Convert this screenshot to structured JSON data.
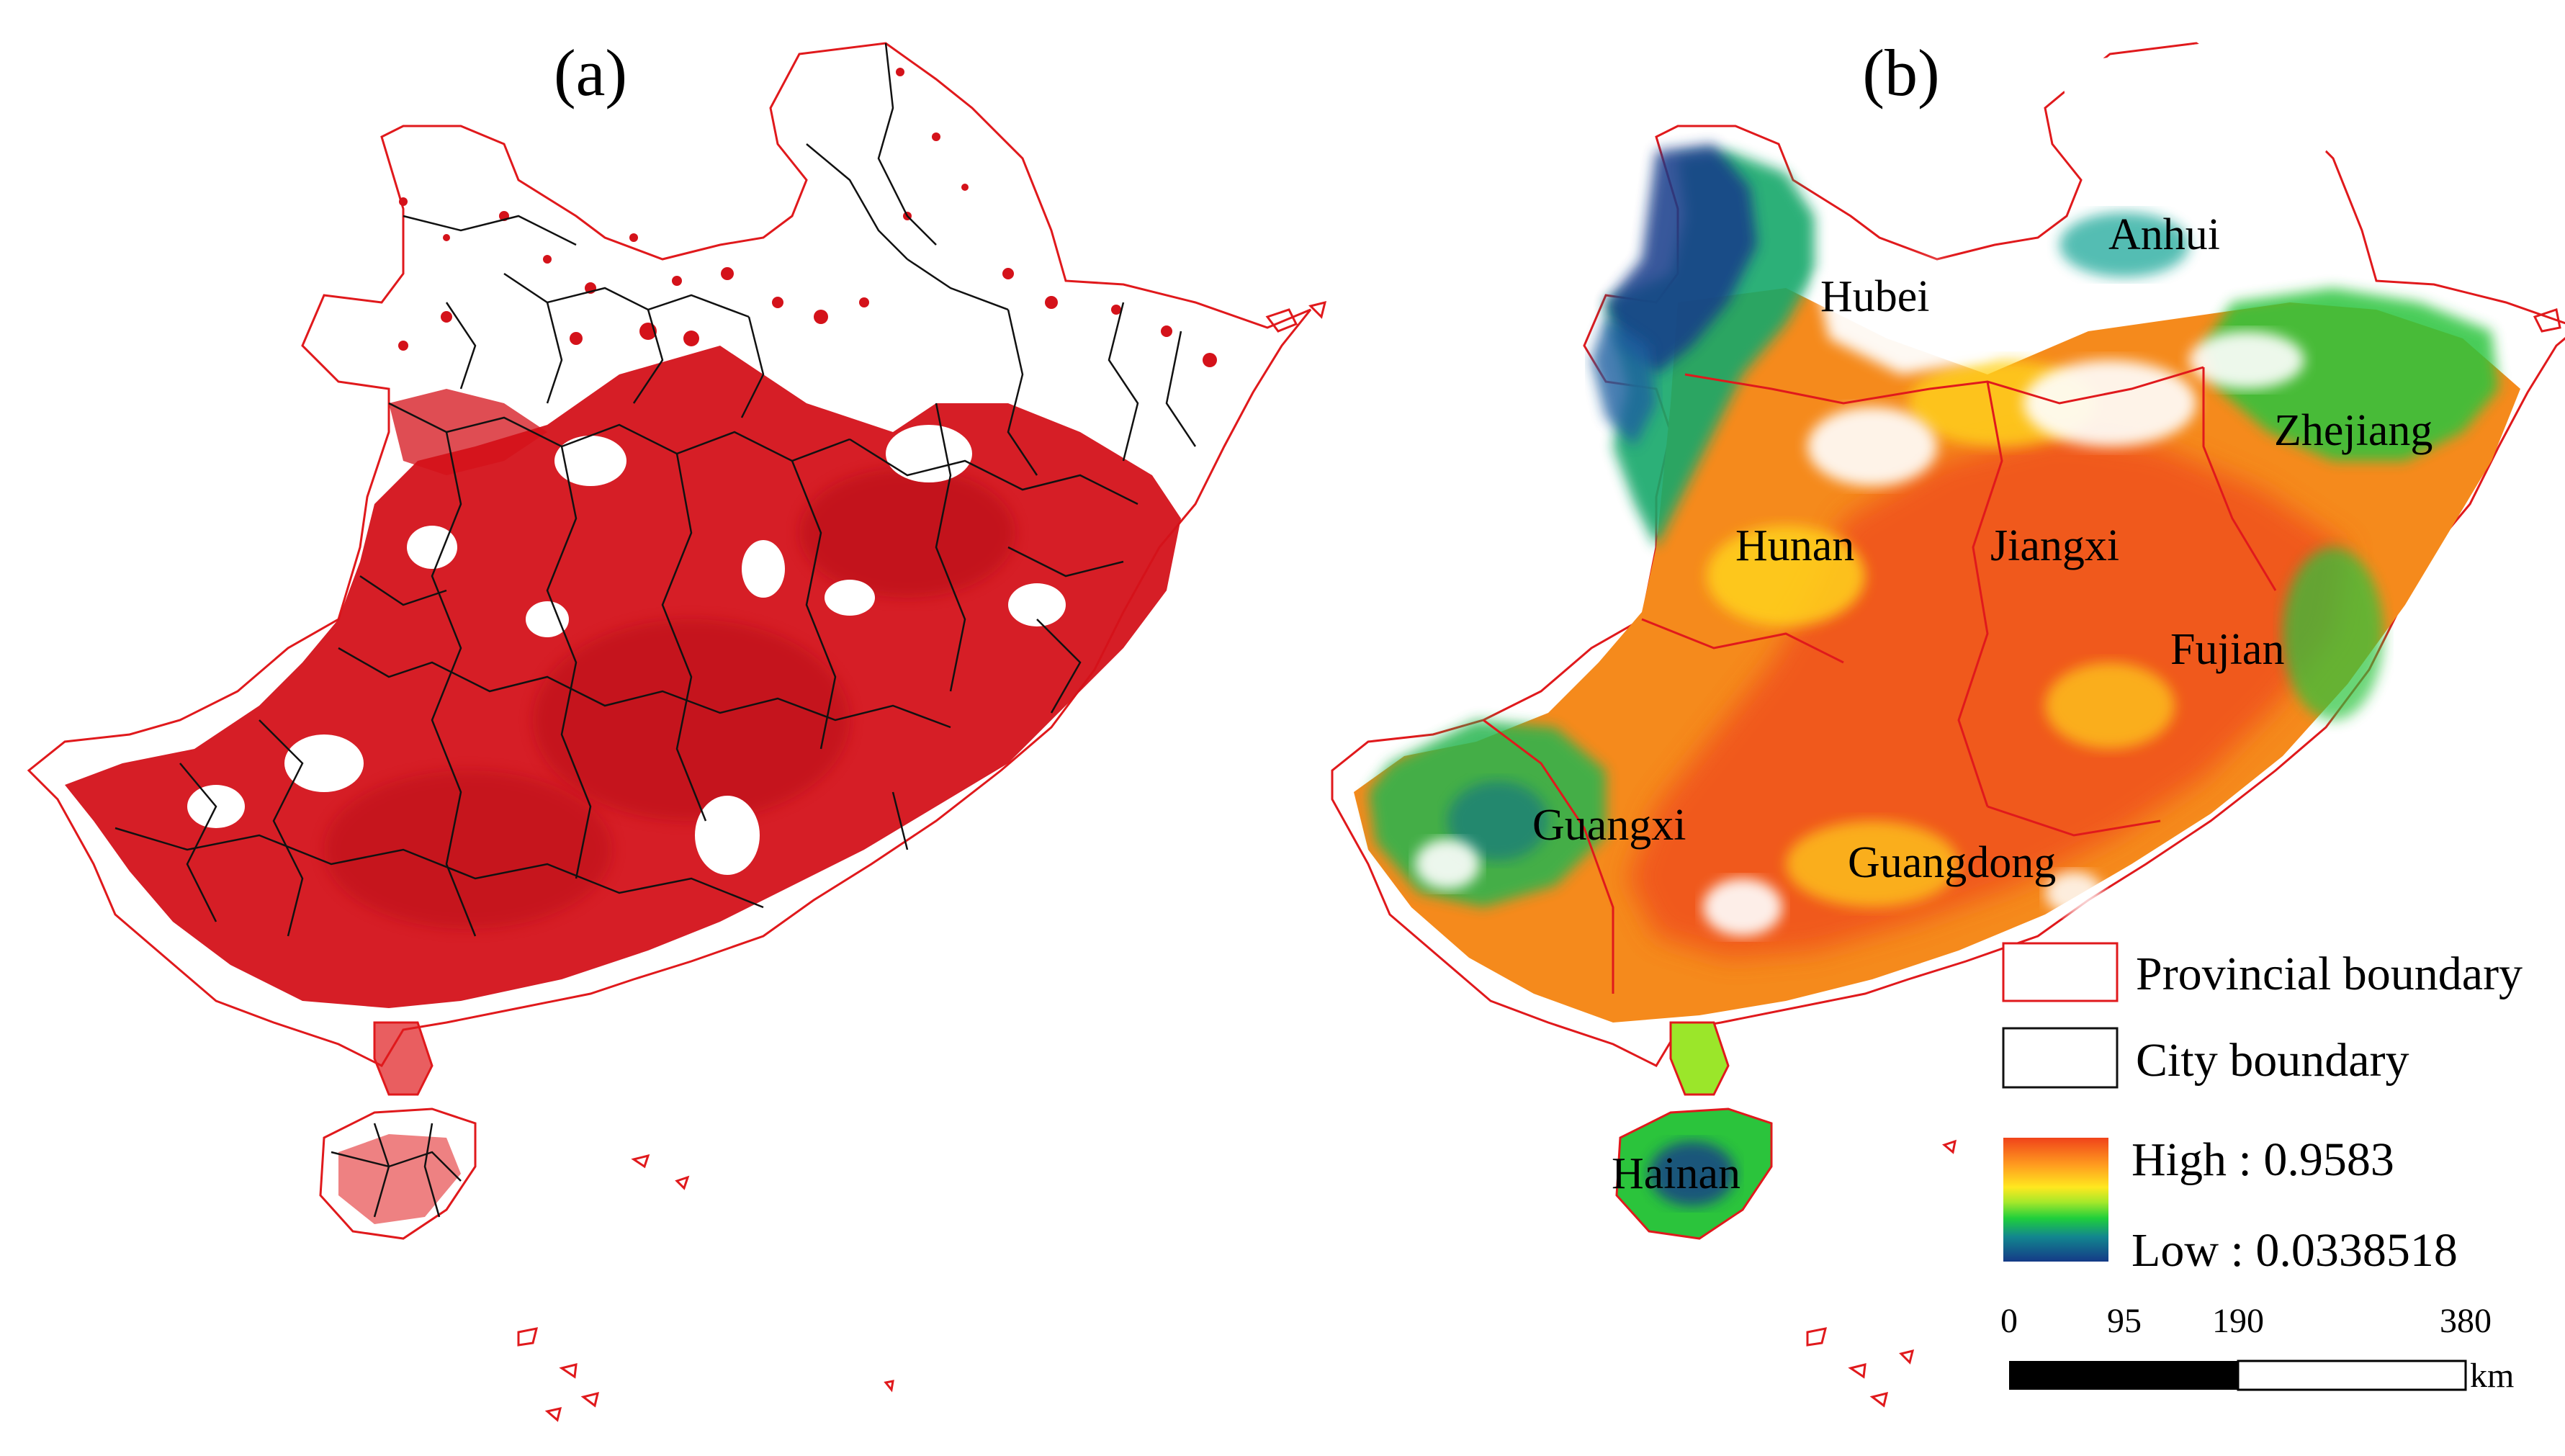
{
  "panels": {
    "a": {
      "label": "(a)"
    },
    "b": {
      "label": "(b)"
    }
  },
  "provinces": [
    {
      "id": "hubei",
      "name": "Hubei"
    },
    {
      "id": "anhui",
      "name": "Anhui"
    },
    {
      "id": "zhejiang",
      "name": "Zhejiang"
    },
    {
      "id": "hunan",
      "name": "Hunan"
    },
    {
      "id": "jiangxi",
      "name": "Jiangxi"
    },
    {
      "id": "fujian",
      "name": "Fujian"
    },
    {
      "id": "guangxi",
      "name": "Guangxi"
    },
    {
      "id": "guangdong",
      "name": "Guangdong"
    },
    {
      "id": "hainan",
      "name": "Hainan"
    }
  ],
  "legend": {
    "provincial_boundary": "Provincial boundary",
    "city_boundary": "City boundary",
    "high": "High : 0.9583",
    "low": "Low : 0.0338518",
    "high_value": 0.9583,
    "low_value": 0.0338518
  },
  "scale_bar": {
    "ticks": [
      "0",
      "95",
      "190",
      "380"
    ],
    "unit": "km"
  },
  "colors": {
    "provincial_boundary": "#e0191c",
    "city_boundary": "#111111",
    "points": "#d4121a",
    "ramp": [
      "#ff5a1f",
      "#ff9a1e",
      "#ffd21e",
      "#ffff33",
      "#9be62a",
      "#2bd13a",
      "#11b08a",
      "#116fb0",
      "#173b8a"
    ]
  }
}
